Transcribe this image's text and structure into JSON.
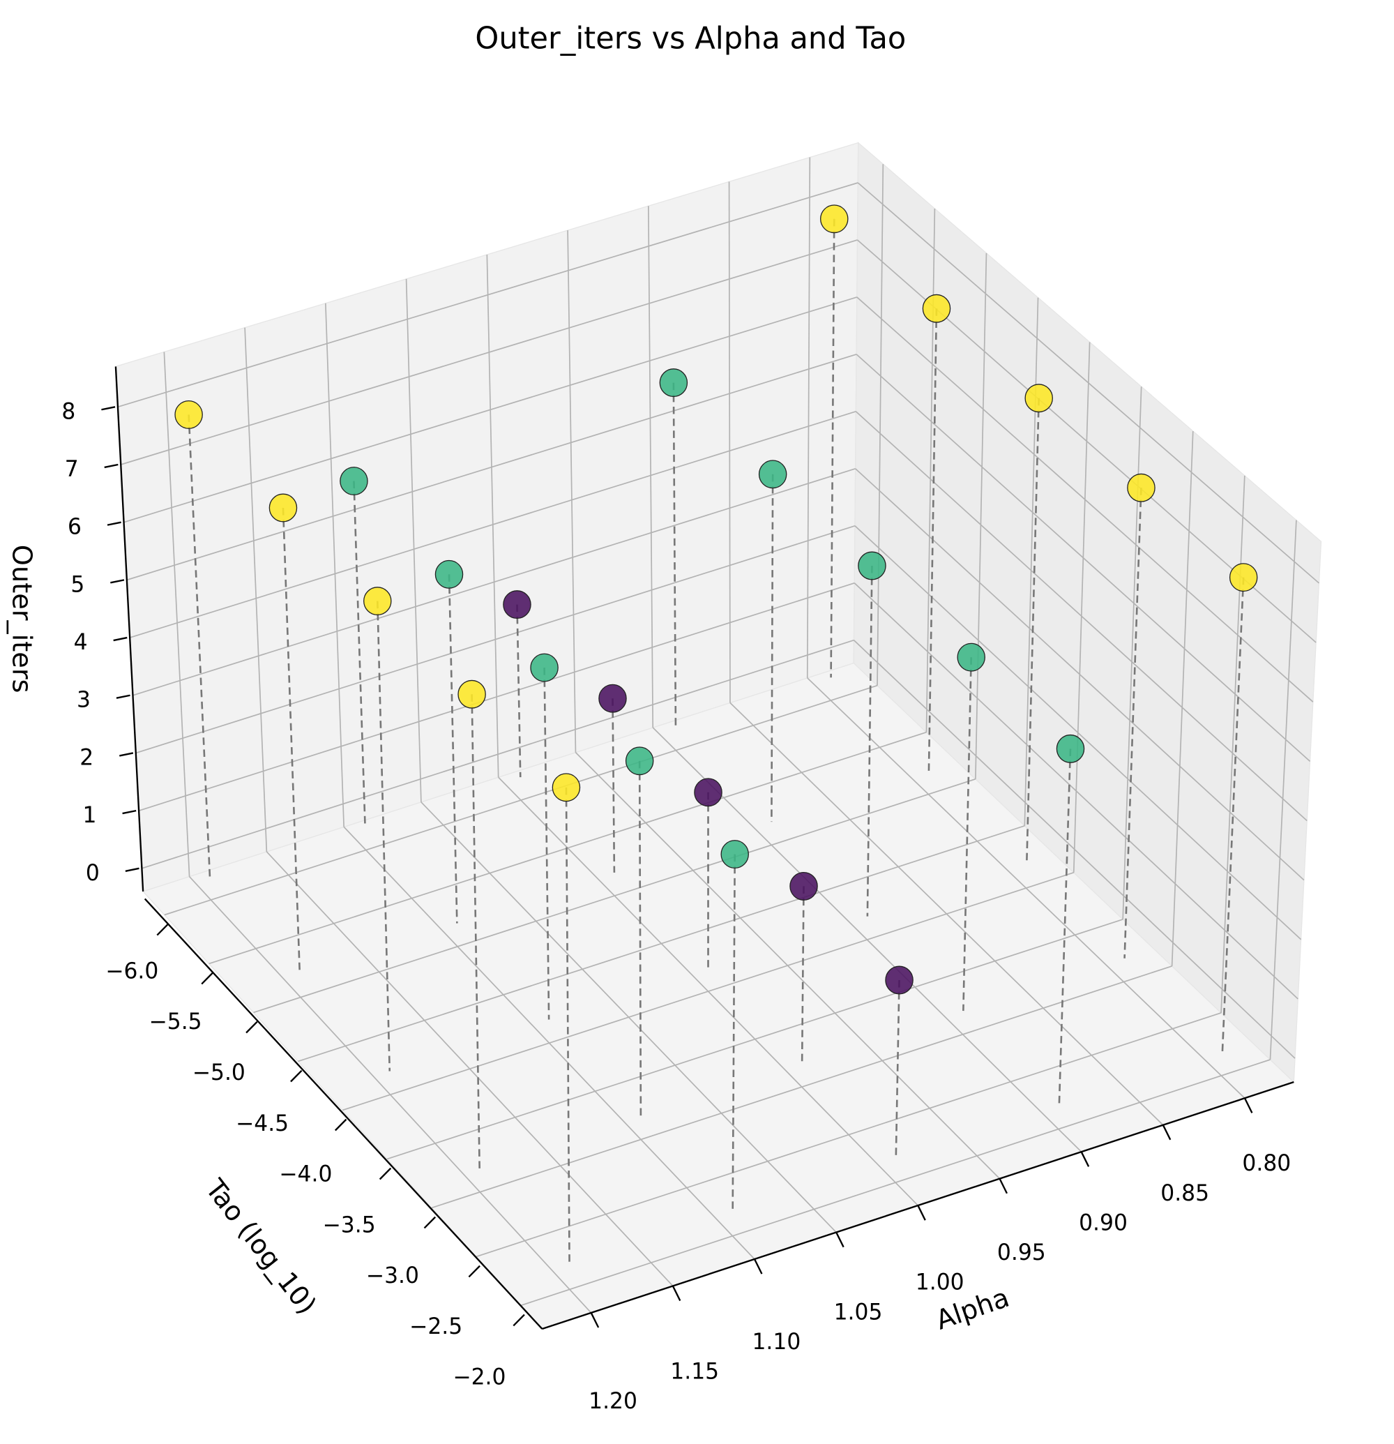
{
  "chart_data": {
    "type": "scatter3d",
    "title": "Outer_iters vs Alpha and Tao",
    "xlabel": "Alpha",
    "ylabel": "Tao (log_10)",
    "zlabel": "Outer_iters",
    "x": [
      0.8,
      0.8,
      0.8,
      0.8,
      0.8,
      0.9,
      0.9,
      0.9,
      0.9,
      0.9,
      1.0,
      1.0,
      1.0,
      1.0,
      1.0,
      1.1,
      1.1,
      1.1,
      1.1,
      1.1,
      1.2,
      1.2,
      1.2,
      1.2,
      1.2
    ],
    "y": [
      -6,
      -5,
      -4,
      -3,
      -2,
      -6,
      -5,
      -4,
      -3,
      -2,
      -6,
      -5,
      -4,
      -3,
      -2,
      -6,
      -5,
      -4,
      -3,
      -2,
      -6,
      -5,
      -4,
      -3,
      -2
    ],
    "z": [
      8,
      8,
      8,
      8,
      8,
      6,
      6,
      6,
      6,
      6,
      3,
      3,
      3,
      3,
      3,
      6,
      6,
      6,
      6,
      6,
      8,
      8,
      8,
      8,
      8
    ],
    "colors": [
      "#fde725",
      "#fde725",
      "#fde725",
      "#fde725",
      "#fde725",
      "#3bb685",
      "#3bb685",
      "#3bb685",
      "#3bb685",
      "#3bb685",
      "#4a1260",
      "#4a1260",
      "#4a1260",
      "#4a1260",
      "#4a1260",
      "#3bb685",
      "#3bb685",
      "#3bb685",
      "#3bb685",
      "#3bb685",
      "#fde725",
      "#fde725",
      "#fde725",
      "#fde725",
      "#fde725"
    ],
    "xlim": [
      0.77,
      1.23
    ],
    "ylim": [
      -6.24,
      -1.76
    ],
    "zlim": [
      -0.4,
      8.7
    ],
    "xticks": [
      {
        "value": 0.8,
        "label": "0.80"
      },
      {
        "value": 0.85,
        "label": "0.85"
      },
      {
        "value": 0.9,
        "label": "0.90"
      },
      {
        "value": 0.95,
        "label": "0.95"
      },
      {
        "value": 1.0,
        "label": "1.00"
      },
      {
        "value": 1.05,
        "label": "1.05"
      },
      {
        "value": 1.1,
        "label": "1.10"
      },
      {
        "value": 1.15,
        "label": "1.15"
      },
      {
        "value": 1.2,
        "label": "1.20"
      }
    ],
    "yticks": [
      {
        "value": -6,
        "label": "−6.0"
      },
      {
        "value": -5.5,
        "label": "−5.5"
      },
      {
        "value": -5,
        "label": "−5.0"
      },
      {
        "value": -4.5,
        "label": "−4.5"
      },
      {
        "value": -4,
        "label": "−4.0"
      },
      {
        "value": -3.5,
        "label": "−3.5"
      },
      {
        "value": -3,
        "label": "−3.0"
      },
      {
        "value": -2.5,
        "label": "−2.5"
      },
      {
        "value": -2,
        "label": "−2.0"
      }
    ],
    "zticks": [
      0,
      1,
      2,
      3,
      4,
      5,
      6,
      7,
      8
    ],
    "grid": true,
    "stem_color": "#777777"
  }
}
